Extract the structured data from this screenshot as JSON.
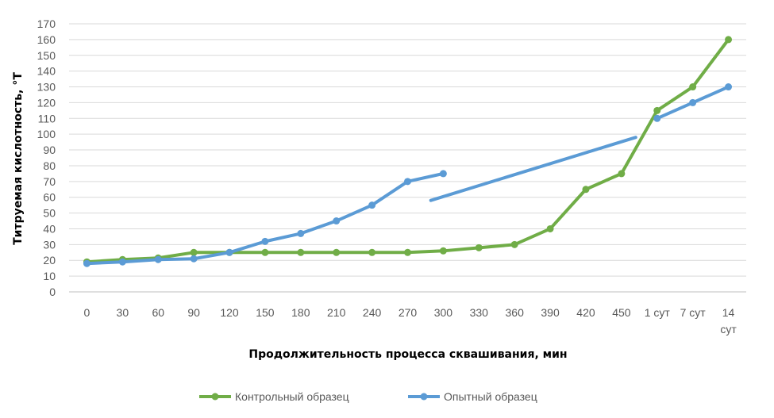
{
  "chart_data": {
    "type": "line",
    "title": "",
    "xlabel": "Продолжительность процесса сквашивания, мин",
    "ylabel": "Титруемая кислотность, °Т",
    "ylim": [
      0,
      170
    ],
    "y_ticks": [
      0,
      10,
      20,
      30,
      40,
      50,
      60,
      70,
      80,
      90,
      100,
      110,
      120,
      130,
      140,
      150,
      160,
      170
    ],
    "grid": true,
    "legend_position": "bottom",
    "categories": [
      [
        "0"
      ],
      [
        "30"
      ],
      [
        "60"
      ],
      [
        "90"
      ],
      [
        "120"
      ],
      [
        "150"
      ],
      [
        "180"
      ],
      [
        "210"
      ],
      [
        "240"
      ],
      [
        "270"
      ],
      [
        "300"
      ],
      [
        "330"
      ],
      [
        "360"
      ],
      [
        "390"
      ],
      [
        "420"
      ],
      [
        "450"
      ],
      [
        "1 сут"
      ],
      [
        "7 сут"
      ],
      [
        "14",
        "сут"
      ]
    ],
    "series": [
      {
        "name": "Контрольный образец",
        "color": "#70ad47",
        "values": [
          19,
          20.5,
          21.5,
          25,
          25,
          25,
          25,
          25,
          25,
          25,
          26,
          28,
          30,
          40,
          65,
          75,
          115,
          130,
          160
        ]
      },
      {
        "name": "Опытный образец",
        "color": "#5b9bd5",
        "values": [
          18,
          19,
          20.5,
          21,
          25,
          32,
          37,
          45,
          55,
          70,
          75,
          null,
          null,
          null,
          null,
          null,
          110,
          120,
          130
        ]
      }
    ],
    "annotations": [
      {
        "type": "line-segment",
        "color": "#5b9bd5",
        "from": [
          9.65,
          58
        ],
        "to": [
          15.4,
          98
        ]
      }
    ]
  }
}
